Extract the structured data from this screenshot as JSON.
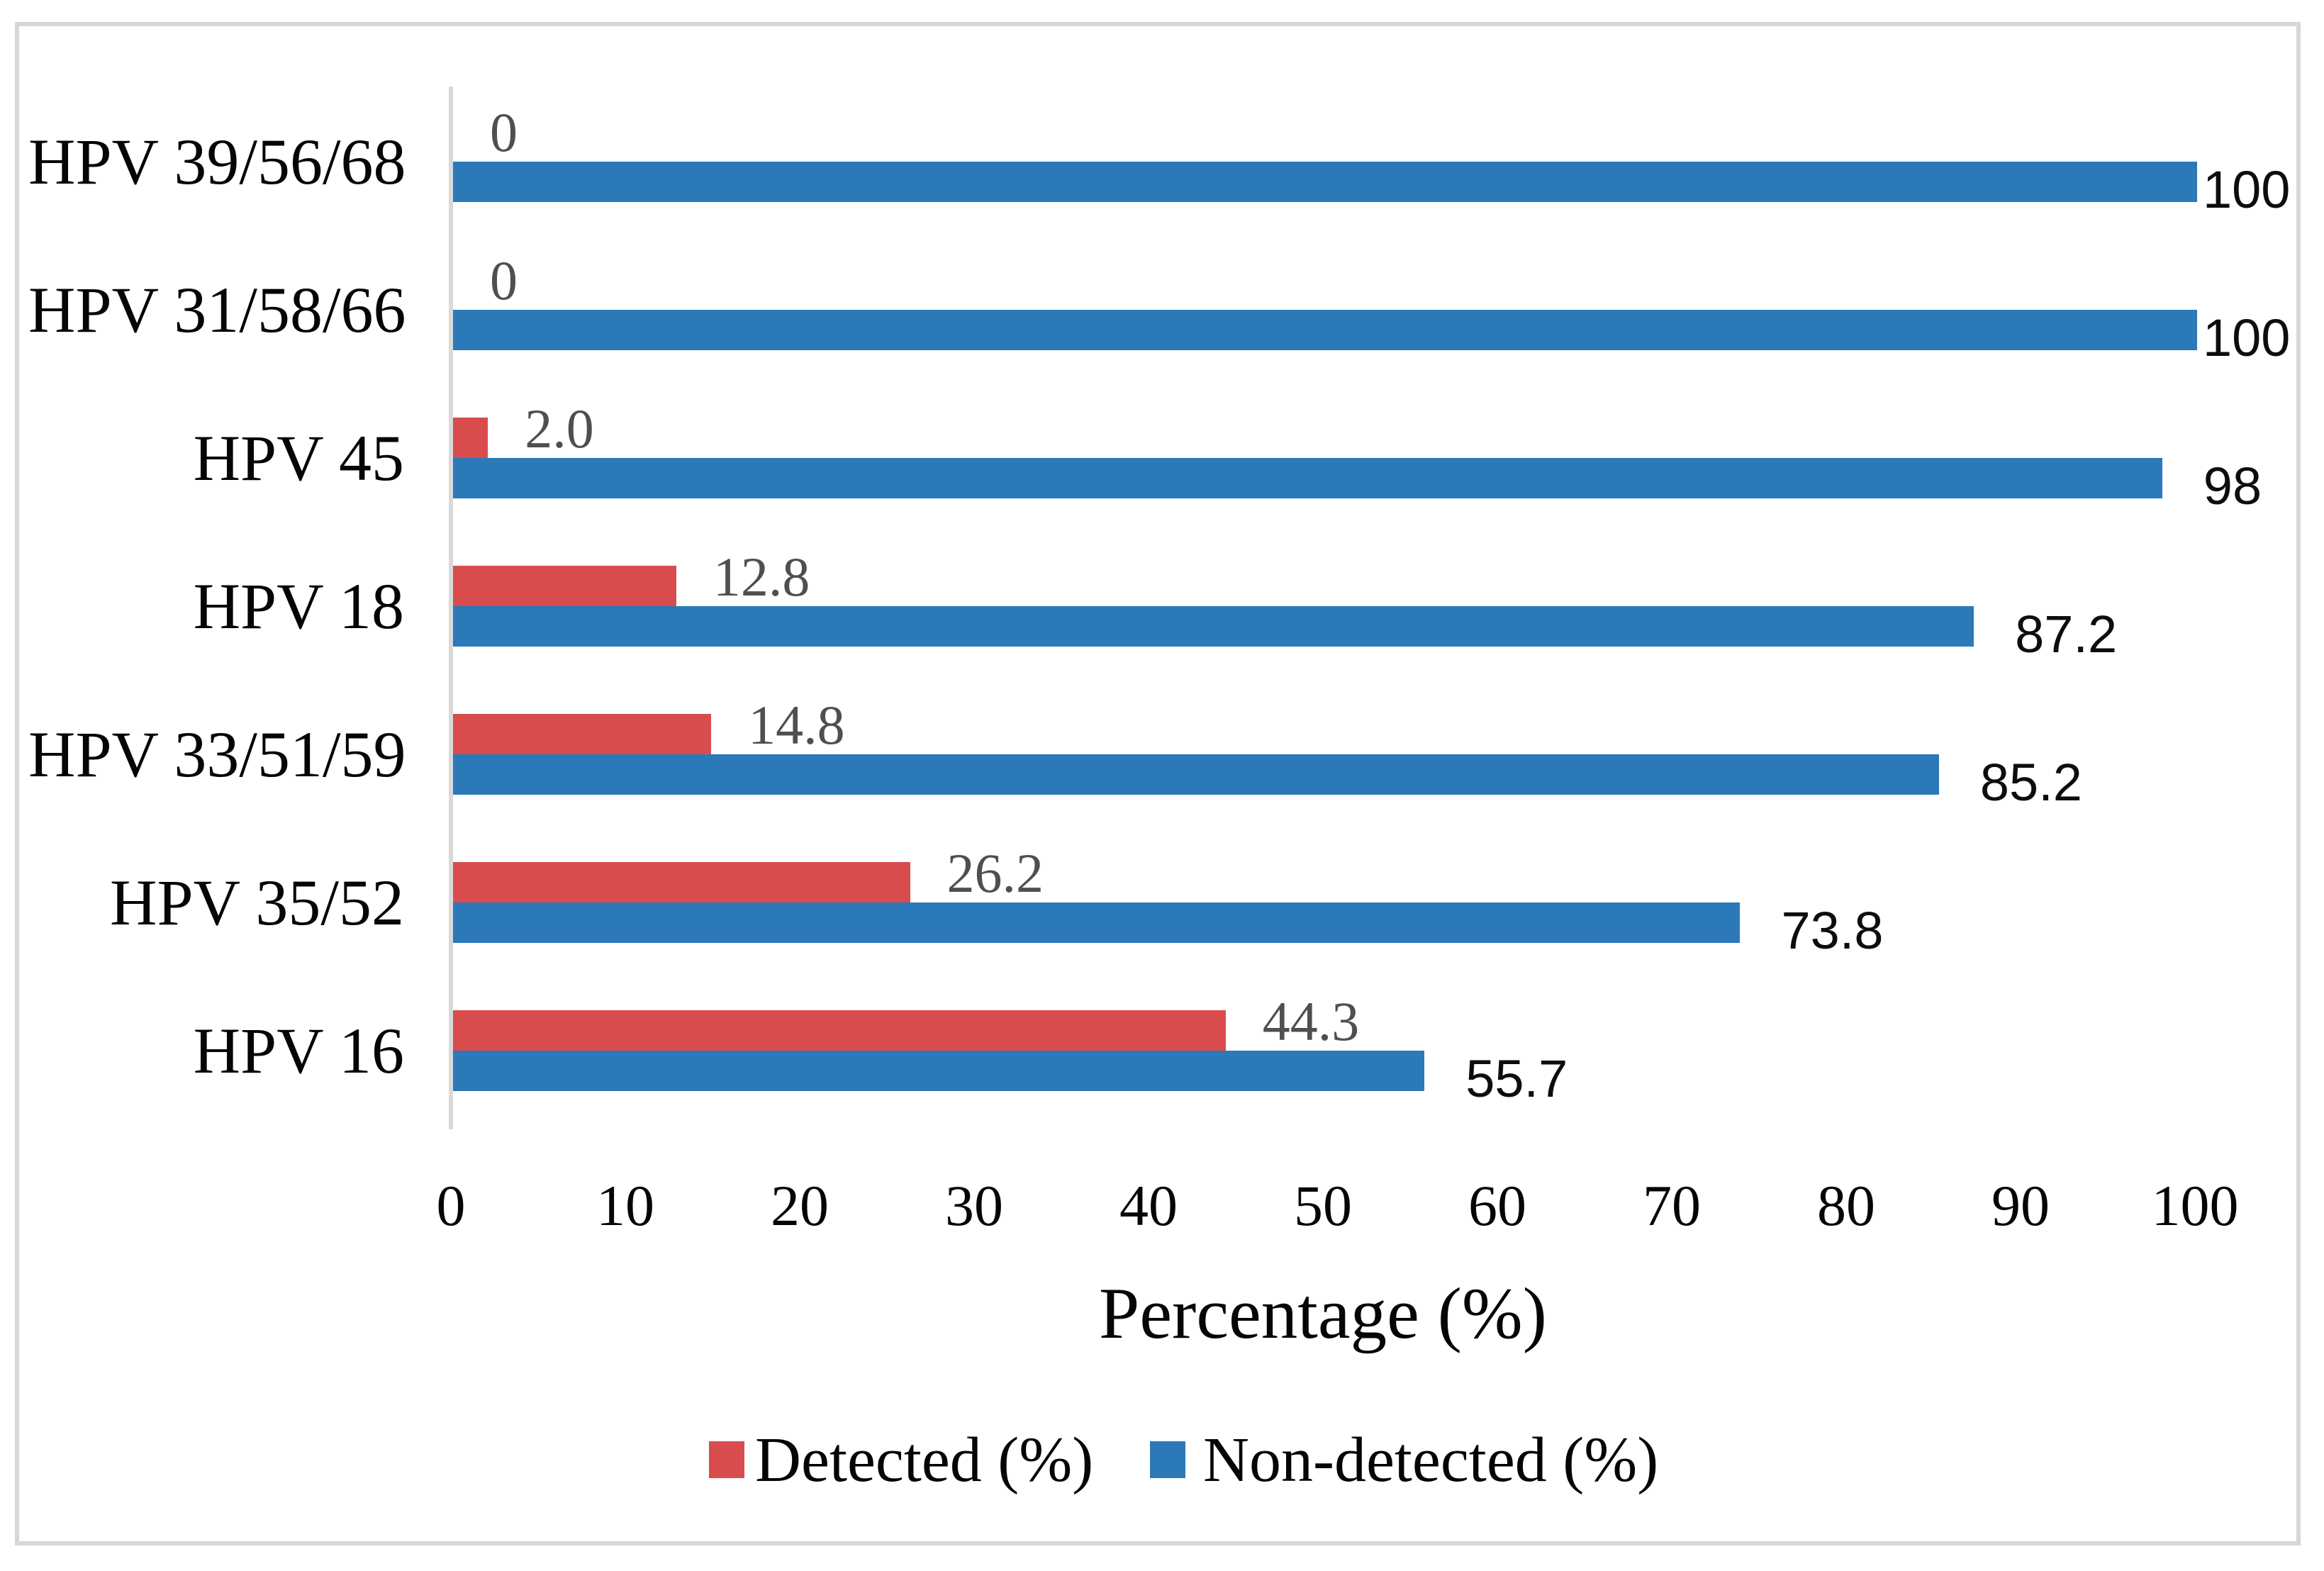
{
  "chart_data": {
    "type": "bar",
    "orientation": "horizontal",
    "title": "",
    "xlabel": "Percentage (%)",
    "ylabel": "",
    "xlim": [
      0,
      100
    ],
    "xticks": [
      "0",
      "10",
      "20",
      "30",
      "40",
      "50",
      "60",
      "70",
      "80",
      "90",
      "100"
    ],
    "grid": false,
    "legend_position": "bottom",
    "categories_top_to_bottom": [
      "HPV 39/56/68",
      "HPV 31/58/66",
      "HPV 45",
      "HPV 18",
      "HPV 33/51/59",
      "HPV 35/52",
      "HPV 16"
    ],
    "series": [
      {
        "name": "Detected (%)",
        "color": "#d84c4e",
        "values": [
          0,
          0,
          2.0,
          12.8,
          14.8,
          26.2,
          44.3
        ],
        "labels": [
          "0",
          "0",
          "2.0",
          "12.8",
          "14.8",
          "26.2",
          "44.3"
        ]
      },
      {
        "name": "Non-detected (%)",
        "color": "#2b79b9",
        "values": [
          100,
          100,
          98,
          87.2,
          85.2,
          73.8,
          55.7
        ],
        "labels": [
          "100",
          "100",
          "98",
          "87.2",
          "85.2",
          "73.8",
          "55.7"
        ]
      }
    ]
  },
  "colors": {
    "detected": "#d84c4e",
    "non_detected": "#2b79b9",
    "axis_line": "#d9d9d9",
    "frame_border": "#d7d7d7",
    "detected_label_text": "#4f4f4f",
    "non_detected_label_text": "#0d0d0d",
    "text": "#050505"
  }
}
